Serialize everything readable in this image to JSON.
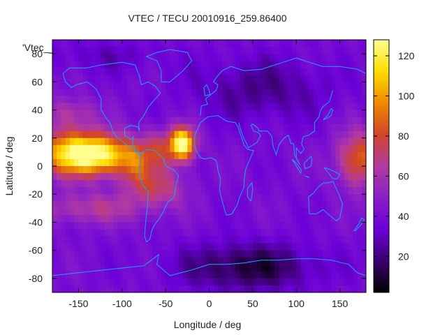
{
  "chart_data": {
    "type": "heatmap",
    "title": "VTEC / TECU 20010916_259.86400",
    "xlabel": "Longitude / deg",
    "ylabel": "Latitude / deg",
    "key_label": "'Vtec_",
    "xlim": [
      -180,
      180
    ],
    "ylim": [
      -90,
      90
    ],
    "x_ticks": [
      -150,
      -100,
      -50,
      0,
      50,
      100,
      150
    ],
    "y_ticks": [
      -80,
      -60,
      -40,
      -20,
      0,
      20,
      40,
      60,
      80
    ],
    "colorbar": {
      "range": [
        2,
        128
      ],
      "ticks": [
        20,
        40,
        60,
        80,
        100,
        120
      ],
      "stops": [
        "#000000",
        "#3a006e",
        "#6a00d8",
        "#8a1ec8",
        "#b23aa0",
        "#d2442a",
        "#ee8a00",
        "#ffdd00",
        "#ffff90"
      ]
    },
    "grid": {
      "lon_step": 5,
      "lat_step": 5
    },
    "field": {
      "background": 40,
      "features": [
        {
          "lon": -125,
          "lat": 8,
          "slon": 30,
          "slat": 10,
          "amp": 80
        },
        {
          "lon": -85,
          "lat": -2,
          "slon": 12,
          "slat": 10,
          "amp": 22
        },
        {
          "lon": -165,
          "lat": 10,
          "slon": 25,
          "slat": 12,
          "amp": 48
        },
        {
          "lon": -30,
          "lat": 16,
          "slon": 10,
          "slat": 8,
          "amp": 85
        },
        {
          "lon": -55,
          "lat": 12,
          "slon": 18,
          "slat": 10,
          "amp": 30
        },
        {
          "lon": -60,
          "lat": -15,
          "slon": 22,
          "slat": 9,
          "amp": 32
        },
        {
          "lon": -135,
          "lat": -30,
          "slon": 50,
          "slat": 8,
          "amp": 25
        },
        {
          "lon": -160,
          "lat": 38,
          "slon": 22,
          "slat": 8,
          "amp": 22
        },
        {
          "lon": 172,
          "lat": 5,
          "slon": 18,
          "slat": 14,
          "amp": 48
        },
        {
          "lon": 45,
          "lat": -72,
          "slon": 55,
          "slat": 12,
          "amp": -30
        },
        {
          "lon": 60,
          "lat": 55,
          "slon": 55,
          "slat": 16,
          "amp": -18
        },
        {
          "lon": -120,
          "lat": 78,
          "slon": 50,
          "slat": 8,
          "amp": -10
        }
      ]
    }
  }
}
